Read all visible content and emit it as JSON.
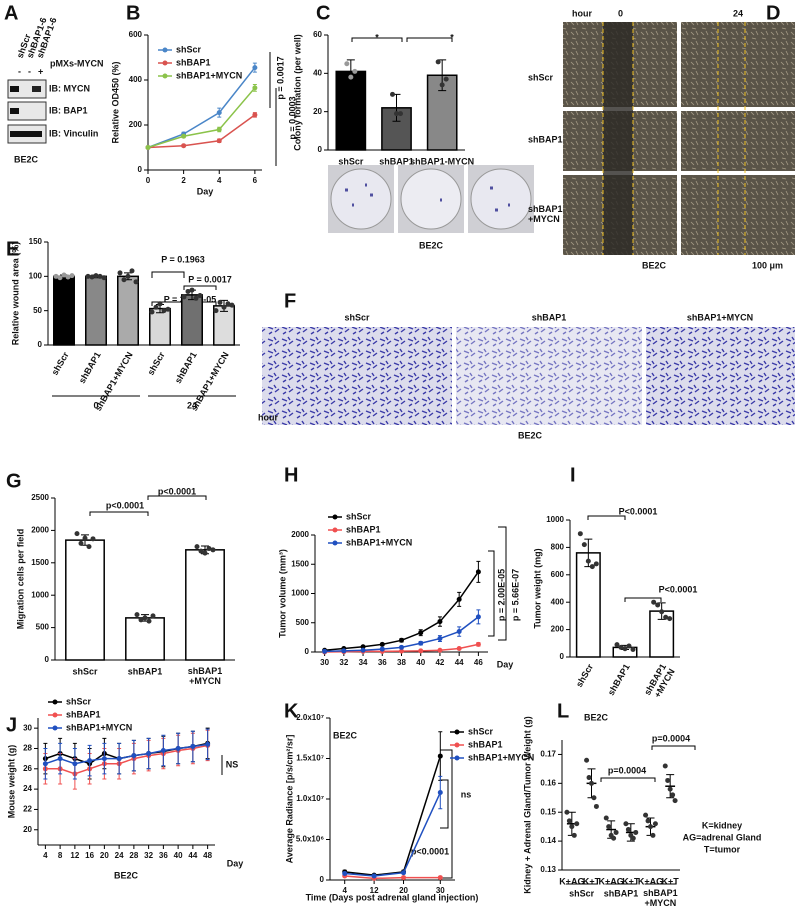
{
  "figures": {
    "blot": {
      "panel": "A",
      "lanes": [
        "shScr",
        "shBAP1-6",
        "shBAP1-6"
      ],
      "treatment": "pMXs-MYCN",
      "signs": [
        "-",
        "-",
        "+"
      ],
      "rows": [
        "IB: MYCN",
        "IB: BAP1",
        "IB: Vinculin"
      ],
      "cell_line": "BE2C"
    },
    "wound": {
      "panel": "D",
      "header": "hour",
      "times": [
        "0",
        "24"
      ],
      "rows": [
        "shScr",
        "shBAP1",
        "shBAP1\n+MYCN"
      ],
      "cell_line": "BE2C",
      "scale": "100 μm"
    },
    "migration": {
      "panel": "F",
      "columns": [
        "shScr",
        "shBAP1",
        "shBAP1+MYCN"
      ],
      "cell_line": "BE2C"
    }
  },
  "chart_data": [
    {
      "panel": "B",
      "type": "line",
      "ylabel": "Relative OD450 (%)",
      "xlabel": "Day",
      "x": [
        0,
        2,
        4,
        6
      ],
      "xlim": [
        0,
        6.4
      ],
      "xticks": [
        0,
        2,
        4,
        6
      ],
      "ylim": [
        0,
        600
      ],
      "yticks": [
        0,
        200,
        400,
        600
      ],
      "series": [
        {
          "name": "shScr",
          "color": "#4a86c8",
          "values": [
            100,
            160,
            255,
            455
          ],
          "errors": [
            5,
            8,
            20,
            20
          ]
        },
        {
          "name": "shBAP1",
          "color": "#d9534f",
          "values": [
            100,
            108,
            130,
            245
          ],
          "errors": [
            3,
            5,
            8,
            10
          ]
        },
        {
          "name": "shBAP1+MYCN",
          "color": "#8bc34a",
          "values": [
            100,
            150,
            180,
            365
          ],
          "errors": [
            3,
            6,
            10,
            15
          ]
        }
      ],
      "annotations": [
        "p = 0.0017",
        "p = 0.0003"
      ]
    },
    {
      "panel": "C",
      "type": "bar",
      "ylabel": "Colony formation  (per well)",
      "categories": [
        "shScr",
        "shBAP1",
        "shBAP1-MYCN"
      ],
      "values": [
        41,
        22,
        39
      ],
      "errors": [
        6,
        7,
        8
      ],
      "colors": [
        "#000000",
        "#555555",
        "#888888"
      ],
      "points": [
        [
          45,
          38,
          41
        ],
        [
          29,
          19,
          19
        ],
        [
          46,
          34,
          37
        ]
      ],
      "ylim": [
        0,
        60
      ],
      "yticks": [
        0,
        20,
        40,
        60
      ],
      "annotations": [
        "*",
        "*",
        "BE2C"
      ]
    },
    {
      "panel": "E",
      "type": "bar",
      "ylabel": "Relative wound area (%)",
      "categories": [
        "shScr",
        "shBAP1",
        "shBAP1+MYCN",
        "shScr",
        "shBAP1",
        "shBAP1+MYCN"
      ],
      "values": [
        100,
        100,
        100,
        53,
        73,
        57
      ],
      "errors": [
        2,
        2,
        5,
        6,
        7,
        8
      ],
      "colors": [
        "#000000",
        "#888888",
        "#aaaaaa",
        "#d8d8d8",
        "#707070",
        "#dddddd"
      ],
      "points": [
        [
          100,
          98,
          102,
          99,
          101
        ],
        [
          100,
          99,
          101,
          100,
          98
        ],
        [
          105,
          95,
          100,
          108,
          92
        ],
        [
          48,
          55,
          60,
          50,
          52
        ],
        [
          70,
          78,
          80,
          68,
          72
        ],
        [
          50,
          62,
          55,
          60,
          58
        ]
      ],
      "groups": [
        "0",
        "24"
      ],
      "group_label": "hour",
      "ylim": [
        0,
        150
      ],
      "yticks": [
        0,
        50,
        100,
        150
      ],
      "annotations": [
        "P = 0.1963",
        "P = 0.0017",
        "P = 2.57E-05"
      ]
    },
    {
      "panel": "G",
      "type": "bar",
      "ylabel": "Migration cells per field",
      "categories": [
        "shScr",
        "shBAP1",
        "shBAP1\n+MYCN"
      ],
      "values": [
        1850,
        650,
        1700
      ],
      "errors": [
        80,
        50,
        60
      ],
      "colors": [
        "#ffffff",
        "#ffffff",
        "#ffffff"
      ],
      "points": [
        [
          1950,
          1800,
          1880,
          1750,
          1870
        ],
        [
          700,
          620,
          650,
          600,
          680
        ],
        [
          1750,
          1680,
          1650,
          1720,
          1700
        ]
      ],
      "ylim": [
        0,
        2500
      ],
      "yticks": [
        0,
        500,
        1000,
        1500,
        2000,
        2500
      ],
      "annotations": [
        "p<0.0001",
        "p<0.0001"
      ]
    },
    {
      "panel": "H",
      "type": "line",
      "ylabel": "Tumor volume (mm³)",
      "xlabel": "Day",
      "x": [
        30,
        32,
        34,
        36,
        38,
        40,
        42,
        44,
        46
      ],
      "xlim": [
        29,
        47
      ],
      "xticks": [
        30,
        32,
        34,
        36,
        38,
        40,
        42,
        44,
        46
      ],
      "ylim": [
        0,
        2000
      ],
      "yticks": [
        0,
        500,
        1000,
        1500,
        2000
      ],
      "series": [
        {
          "name": "shScr",
          "color": "#000000",
          "values": [
            30,
            60,
            90,
            130,
            200,
            330,
            520,
            900,
            1370
          ],
          "errors": [
            5,
            10,
            15,
            20,
            30,
            50,
            80,
            120,
            180
          ]
        },
        {
          "name": "shBAP1",
          "color": "#f05050",
          "values": [
            0,
            5,
            10,
            10,
            15,
            20,
            30,
            60,
            130
          ],
          "errors": [
            2,
            2,
            3,
            3,
            4,
            5,
            8,
            15,
            30
          ]
        },
        {
          "name": "shBAP1+MYCN",
          "color": "#2050c0",
          "values": [
            10,
            20,
            30,
            50,
            80,
            150,
            230,
            350,
            600
          ],
          "errors": [
            3,
            5,
            8,
            10,
            20,
            30,
            50,
            80,
            120
          ]
        }
      ],
      "annotations": [
        "p = 2.00E-05",
        "p = 5.66E-07"
      ]
    },
    {
      "panel": "I",
      "type": "bar",
      "ylabel": "Tumor weight (mg)",
      "categories": [
        "shScr",
        "shBAP1",
        "shBAP1\n+MYCN"
      ],
      "values": [
        760,
        70,
        335
      ],
      "errors": [
        100,
        15,
        60
      ],
      "colors": [
        "#ffffff",
        "#ffffff",
        "#ffffff"
      ],
      "points": [
        [
          900,
          820,
          700,
          660,
          680
        ],
        [
          90,
          70,
          60,
          80,
          55
        ],
        [
          400,
          380,
          330,
          290,
          280
        ]
      ],
      "ylim": [
        0,
        1000
      ],
      "yticks": [
        0,
        200,
        400,
        600,
        800,
        1000
      ],
      "annotations": [
        "P<0.0001",
        "P<0.0001"
      ]
    },
    {
      "panel": "J",
      "type": "line",
      "ylabel": "Mouse weight (g)",
      "xlabel": "Day",
      "x": [
        4,
        8,
        12,
        16,
        20,
        24,
        28,
        32,
        36,
        40,
        44,
        48
      ],
      "xlim": [
        2,
        50
      ],
      "xticks": [
        4,
        8,
        12,
        16,
        20,
        24,
        28,
        32,
        36,
        40,
        44,
        48
      ],
      "ylim": [
        18.5,
        31
      ],
      "yticks": [
        20,
        22,
        24,
        26,
        28,
        30
      ],
      "series": [
        {
          "name": "shScr",
          "color": "#000000",
          "values": [
            27,
            27.5,
            27,
            26.5,
            27.5,
            27,
            27.3,
            27.5,
            27.7,
            28,
            28.2,
            28.5
          ],
          "errors": [
            1.5,
            1.5,
            1.5,
            1.5,
            1.5,
            1.5,
            1.5,
            1.5,
            1.5,
            1.5,
            1.5,
            1.5
          ]
        },
        {
          "name": "shBAP1",
          "color": "#f05050",
          "values": [
            26,
            26,
            25.5,
            26,
            26.5,
            26.5,
            27,
            27.3,
            27.5,
            27.8,
            28,
            28.3
          ],
          "errors": [
            1.5,
            1.5,
            1.5,
            1.5,
            1.5,
            1.5,
            1.5,
            1.5,
            1.5,
            1.5,
            1.5,
            1.5
          ]
        },
        {
          "name": "shBAP1+MYCN",
          "color": "#2050c0",
          "values": [
            26.5,
            27,
            26.5,
            26.8,
            27,
            27,
            27.3,
            27.5,
            27.8,
            28,
            28.2,
            28.4
          ],
          "errors": [
            1.5,
            1.5,
            1.5,
            1.5,
            1.5,
            1.5,
            1.5,
            1.5,
            1.5,
            1.5,
            1.5,
            1.5
          ]
        }
      ],
      "annotations": [
        "NS",
        "BE2C"
      ]
    },
    {
      "panel": "K",
      "type": "line",
      "ylabel": "Average Radiance [p/s/cm²/sr]",
      "xlabel": "Time (Days post adrenal gland injection)",
      "x": [
        4,
        12,
        20,
        30
      ],
      "xlim": [
        0,
        34
      ],
      "xticks": [
        4,
        12,
        20,
        30
      ],
      "ylim": [
        0,
        20000000
      ],
      "yticks": [
        0,
        {
          "value": 5000000,
          "label": "5.0x10⁶"
        },
        {
          "value": 10000000,
          "label": "1.0x10⁷"
        },
        {
          "value": 15000000,
          "label": "1.5x10⁷"
        },
        {
          "value": 20000000,
          "label": "2.0x10⁷"
        }
      ],
      "series": [
        {
          "name": "shScr",
          "color": "#000000",
          "values": [
            1000000,
            600000,
            1000000,
            15300000
          ],
          "errors": [
            200000,
            100000,
            200000,
            3000000
          ]
        },
        {
          "name": "shBAP1",
          "color": "#f05050",
          "values": [
            500000,
            200000,
            300000,
            300000
          ],
          "errors": [
            100000,
            50000,
            50000,
            100000
          ]
        },
        {
          "name": "shBAP1+MYCN",
          "color": "#2050c0",
          "values": [
            800000,
            500000,
            900000,
            10800000
          ],
          "errors": [
            150000,
            100000,
            150000,
            2000000
          ]
        }
      ],
      "annotations": [
        "BE2C",
        "ns",
        "p<0.0001"
      ]
    },
    {
      "panel": "L",
      "type": "dot",
      "ylabel": "Kidney + Adrenal Gland/Tumor Weight (g)",
      "categories": [
        "K+AG",
        "K+T",
        "K+AG",
        "K+T",
        "K+AG",
        "K+T"
      ],
      "values": [
        0.146,
        0.16,
        0.144,
        0.143,
        0.145,
        0.159
      ],
      "errors": [
        0.004,
        0.005,
        0.003,
        0.003,
        0.003,
        0.004
      ],
      "points": [
        [
          0.15,
          0.147,
          0.145,
          0.142,
          0.146
        ],
        [
          0.168,
          0.162,
          0.16,
          0.155,
          0.152
        ],
        [
          0.148,
          0.145,
          0.142,
          0.141,
          0.143
        ],
        [
          0.146,
          0.144,
          0.142,
          0.141,
          0.143
        ],
        [
          0.149,
          0.147,
          0.145,
          0.142,
          0.146
        ],
        [
          0.166,
          0.161,
          0.158,
          0.156,
          0.154
        ]
      ],
      "groups": [
        "shScr",
        "shBAP1",
        "shBAP1\n+MYCN"
      ],
      "ylim": [
        0.13,
        0.175
      ],
      "yticks": [
        0.13,
        0.14,
        0.15,
        0.16,
        0.17
      ],
      "annotations": [
        "BE2C",
        "p=0.0004",
        "p=0.0004",
        "K=kidney",
        "AG=adrenal Gland",
        "T=tumor"
      ]
    }
  ]
}
